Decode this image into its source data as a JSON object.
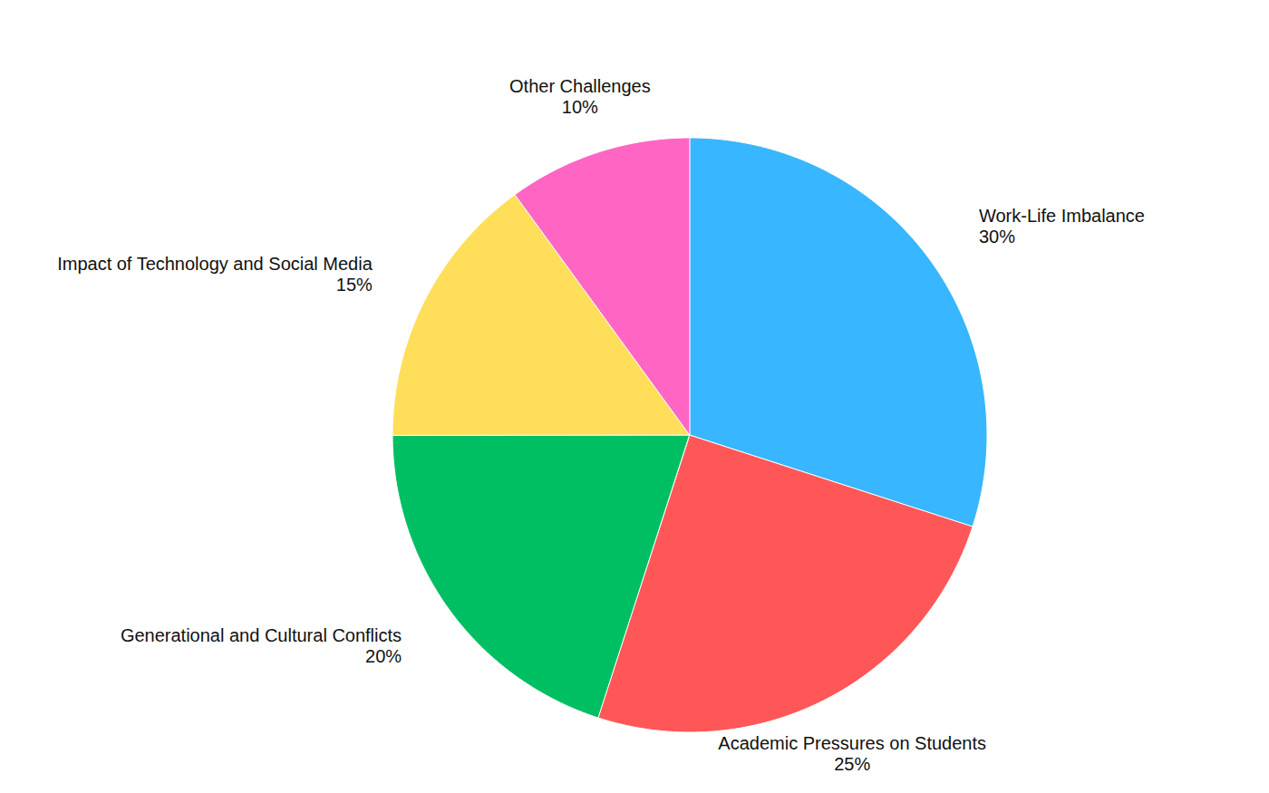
{
  "chart_data": {
    "type": "pie",
    "categories": [
      "Work-Life Imbalance",
      "Academic Pressures on Students",
      "Generational and Cultural Conflicts",
      "Impact of Technology and Social Media",
      "Other Challenges"
    ],
    "values": [
      30,
      25,
      20,
      15,
      10
    ],
    "value_labels": [
      "30%",
      "25%",
      "20%",
      "15%",
      "10%"
    ],
    "colors": [
      "#38b6ff",
      "#ff5757",
      "#00bf63",
      "#ffde59",
      "#ff66c4"
    ],
    "data_labels": true
  }
}
